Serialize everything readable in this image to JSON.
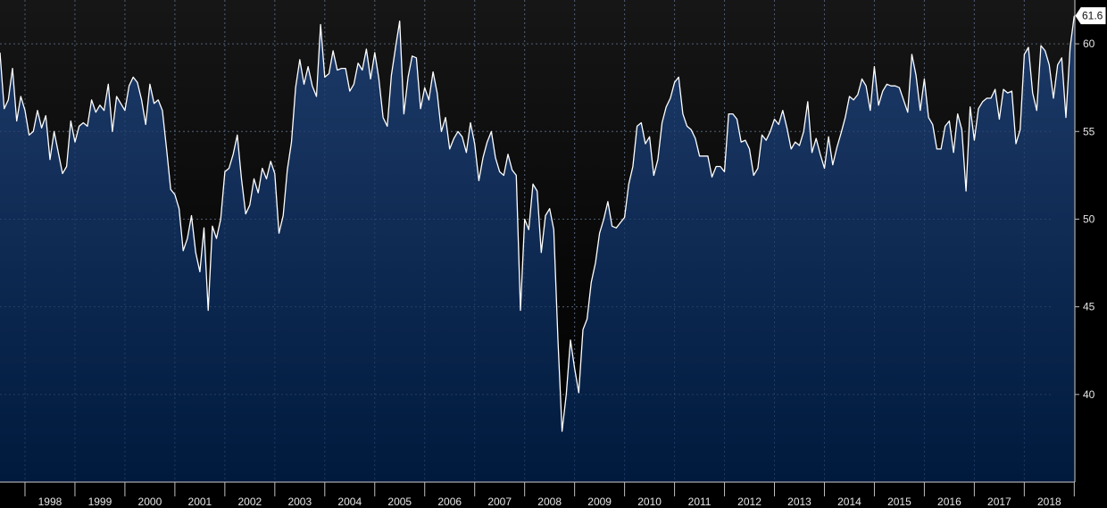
{
  "chart_data": {
    "type": "area",
    "title": "",
    "xlabel": "",
    "ylabel": "",
    "x_start": "1997-07",
    "x_end": "2018-06",
    "xlim": [
      "1997-07",
      "2018-08"
    ],
    "ylim": [
      35,
      62.5
    ],
    "y_ticks": [
      40,
      45,
      50,
      55,
      60
    ],
    "x_ticks": [
      "1998",
      "1999",
      "2000",
      "2001",
      "2002",
      "2003",
      "2004",
      "2005",
      "2006",
      "2007",
      "2008",
      "2009",
      "2010",
      "2011",
      "2012",
      "2013",
      "2014",
      "2015",
      "2016",
      "2017",
      "2018"
    ],
    "last_value": 61.6,
    "grid": true,
    "colors": {
      "line": "#ffffff",
      "fill_top": "#1d3a68",
      "fill_bottom": "#001a3d",
      "background": "#000000",
      "grid": "#5a5a5a"
    },
    "series": [
      {
        "values": [
          59.5,
          56.3,
          56.8,
          58.6,
          55.6,
          57.0,
          56.2,
          54.8,
          55.0,
          56.2,
          55.2,
          55.9,
          53.4,
          55.0,
          53.8,
          52.6,
          53.0,
          55.6,
          54.4,
          55.3,
          55.5,
          55.3,
          56.8,
          56.1,
          56.5,
          56.2,
          57.7,
          55.0,
          57.0,
          56.6,
          56.2,
          57.6,
          58.1,
          57.8,
          56.8,
          55.4,
          57.7,
          56.6,
          56.8,
          56.2,
          54.0,
          51.7,
          51.4,
          50.6,
          48.2,
          48.9,
          50.2,
          48.1,
          47.0,
          49.5,
          44.8,
          49.6,
          48.9,
          50.0,
          52.7,
          52.9,
          53.7,
          54.8,
          52.3,
          50.3,
          50.8,
          52.3,
          51.5,
          52.9,
          52.3,
          53.3,
          52.6,
          49.2,
          50.2,
          52.8,
          54.4,
          57.5,
          59.1,
          57.7,
          58.7,
          57.6,
          57.0,
          61.1,
          58.1,
          58.3,
          59.6,
          58.5,
          58.6,
          58.6,
          57.3,
          57.7,
          58.9,
          58.5,
          59.7,
          58.0,
          59.5,
          58.0,
          55.8,
          55.3,
          58.2,
          59.8,
          61.3,
          56.0,
          58.1,
          59.3,
          59.2,
          56.3,
          57.5,
          56.8,
          58.4,
          57.2,
          55.0,
          55.8,
          54.0,
          54.6,
          55.0,
          54.7,
          53.8,
          55.5,
          54.3,
          52.2,
          53.5,
          54.4,
          55.0,
          53.5,
          52.7,
          52.5,
          53.7,
          52.8,
          52.5,
          44.8,
          50.0,
          49.4,
          52.0,
          51.6,
          48.1,
          50.2,
          50.6,
          49.4,
          43.1,
          37.9,
          40.0,
          43.1,
          41.5,
          40.1,
          43.7,
          44.3,
          46.4,
          47.5,
          49.2,
          50.0,
          51.0,
          49.6,
          49.5,
          49.8,
          50.1,
          52.0,
          53.0,
          55.3,
          55.5,
          54.3,
          54.7,
          52.5,
          53.4,
          55.5,
          56.4,
          56.9,
          57.8,
          58.1,
          56.0,
          55.3,
          55.1,
          54.6,
          53.6,
          53.6,
          53.6,
          52.4,
          53.0,
          53.0,
          52.7,
          56.0,
          56.0,
          55.7,
          54.4,
          54.5,
          54.0,
          52.5,
          52.9,
          54.8,
          54.5,
          55.0,
          55.7,
          55.4,
          56.2,
          55.2,
          54.0,
          54.4,
          54.2,
          55.0,
          56.7,
          53.8,
          54.6,
          53.7,
          52.9,
          54.7,
          53.1,
          54.1,
          54.9,
          55.8,
          57.0,
          56.8,
          57.1,
          58.0,
          57.6,
          56.2,
          58.7,
          56.5,
          57.3,
          57.7,
          57.6,
          57.6,
          57.5,
          56.8,
          56.1,
          59.4,
          58.2,
          56.2,
          58.0,
          55.8,
          55.4,
          54.0,
          54.0,
          55.3,
          55.6,
          53.8,
          56.0,
          55.1,
          51.6,
          56.4,
          54.5,
          56.3,
          56.7,
          56.9,
          56.9,
          57.4,
          55.7,
          57.4,
          57.2,
          57.3,
          54.3,
          55.1,
          59.4,
          59.8,
          57.2,
          56.2,
          59.9,
          59.6,
          58.8,
          56.9,
          58.8,
          59.2,
          55.8,
          59.8,
          61.6
        ]
      }
    ]
  }
}
